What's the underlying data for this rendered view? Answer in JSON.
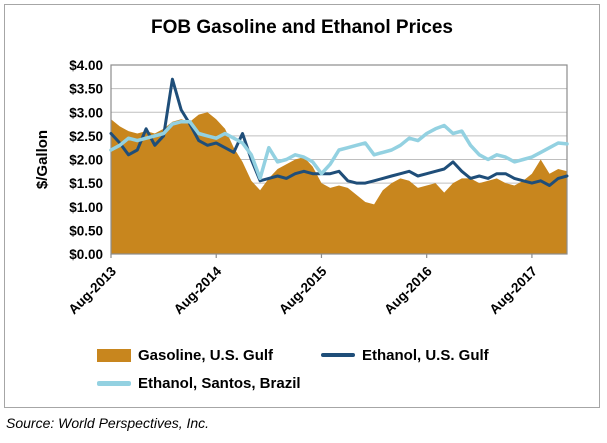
{
  "title": "FOB Gasoline and Ethanol Prices",
  "source_note": "Source: World Perspectives, Inc.",
  "colors": {
    "gasoline_area": "#C8861E",
    "ethanol_us_gulf": "#1F4E79",
    "ethanol_santos": "#93D1E1",
    "gridline": "#BFBFBF",
    "plot_border": "#8C8C8C",
    "frame_border": "#A6A6A6",
    "text": "#000000"
  },
  "chart_data": {
    "type": "area+line",
    "title": "FOB Gasoline and Ethanol Prices",
    "xlabel": "",
    "ylabel": "$/Gallon",
    "ylim": [
      0,
      4
    ],
    "ytick_step": 0.5,
    "ytick_labels": [
      "$4.00",
      "$3.50",
      "$3.00",
      "$2.50",
      "$2.00",
      "$1.50",
      "$1.00",
      "$0.50",
      "$0.00"
    ],
    "grid": "horizontal",
    "legend_position": "bottom",
    "xtick_labels": [
      "Aug-2013",
      "Aug-2014",
      "Aug-2015",
      "Aug-2016",
      "Aug-2017"
    ],
    "xtick_indices": [
      0,
      12,
      24,
      36,
      48
    ],
    "categories": [
      "Aug-2013",
      "Sep-2013",
      "Oct-2013",
      "Nov-2013",
      "Dec-2013",
      "Jan-2014",
      "Feb-2014",
      "Mar-2014",
      "Apr-2014",
      "May-2014",
      "Jun-2014",
      "Jul-2014",
      "Aug-2014",
      "Sep-2014",
      "Oct-2014",
      "Nov-2014",
      "Dec-2014",
      "Jan-2015",
      "Feb-2015",
      "Mar-2015",
      "Apr-2015",
      "May-2015",
      "Jun-2015",
      "Jul-2015",
      "Aug-2015",
      "Sep-2015",
      "Oct-2015",
      "Nov-2015",
      "Dec-2015",
      "Jan-2016",
      "Feb-2016",
      "Mar-2016",
      "Apr-2016",
      "May-2016",
      "Jun-2016",
      "Jul-2016",
      "Aug-2016",
      "Sep-2016",
      "Oct-2016",
      "Nov-2016",
      "Dec-2016",
      "Jan-2017",
      "Feb-2017",
      "Mar-2017",
      "Apr-2017",
      "May-2017",
      "Jun-2017",
      "Jul-2017",
      "Aug-2017",
      "Sep-2017",
      "Oct-2017",
      "Nov-2017",
      "Dec-2017"
    ],
    "series": [
      {
        "name": "Gasoline, U.S. Gulf",
        "type": "area",
        "color": "#C8861E",
        "values": [
          2.85,
          2.7,
          2.6,
          2.55,
          2.6,
          2.55,
          2.65,
          2.8,
          2.85,
          2.8,
          2.95,
          3.0,
          2.85,
          2.65,
          2.25,
          1.95,
          1.55,
          1.35,
          1.6,
          1.8,
          1.9,
          2.0,
          2.05,
          1.85,
          1.5,
          1.4,
          1.45,
          1.4,
          1.25,
          1.1,
          1.05,
          1.35,
          1.5,
          1.6,
          1.55,
          1.4,
          1.45,
          1.5,
          1.3,
          1.5,
          1.6,
          1.6,
          1.5,
          1.55,
          1.6,
          1.5,
          1.45,
          1.55,
          1.7,
          2.0,
          1.7,
          1.8,
          1.75
        ]
      },
      {
        "name": "Ethanol, U.S. Gulf",
        "type": "line",
        "color": "#1F4E79",
        "width": 3,
        "values": [
          2.55,
          2.35,
          2.1,
          2.2,
          2.65,
          2.3,
          2.5,
          3.7,
          3.05,
          2.75,
          2.4,
          2.3,
          2.35,
          2.25,
          2.15,
          2.55,
          2.0,
          1.55,
          1.6,
          1.65,
          1.6,
          1.7,
          1.75,
          1.7,
          1.7,
          1.7,
          1.75,
          1.55,
          1.5,
          1.5,
          1.55,
          1.6,
          1.65,
          1.7,
          1.75,
          1.65,
          1.7,
          1.75,
          1.8,
          1.95,
          1.75,
          1.6,
          1.65,
          1.6,
          1.7,
          1.7,
          1.6,
          1.55,
          1.5,
          1.55,
          1.45,
          1.6,
          1.65
        ]
      },
      {
        "name": "Ethanol, Santos, Brazil",
        "type": "line",
        "color": "#93D1E1",
        "width": 3.5,
        "values": [
          2.2,
          2.3,
          2.45,
          2.4,
          2.45,
          2.5,
          2.55,
          2.75,
          2.8,
          2.8,
          2.55,
          2.5,
          2.45,
          2.55,
          2.45,
          2.35,
          2.1,
          1.6,
          2.25,
          1.95,
          2.0,
          2.1,
          2.05,
          1.95,
          1.7,
          1.9,
          2.2,
          2.25,
          2.3,
          2.35,
          2.1,
          2.15,
          2.2,
          2.3,
          2.45,
          2.4,
          2.55,
          2.65,
          2.72,
          2.55,
          2.6,
          2.3,
          2.1,
          2.0,
          2.1,
          2.05,
          1.95,
          2.0,
          2.05,
          2.15,
          2.25,
          2.35,
          2.33
        ]
      }
    ]
  }
}
